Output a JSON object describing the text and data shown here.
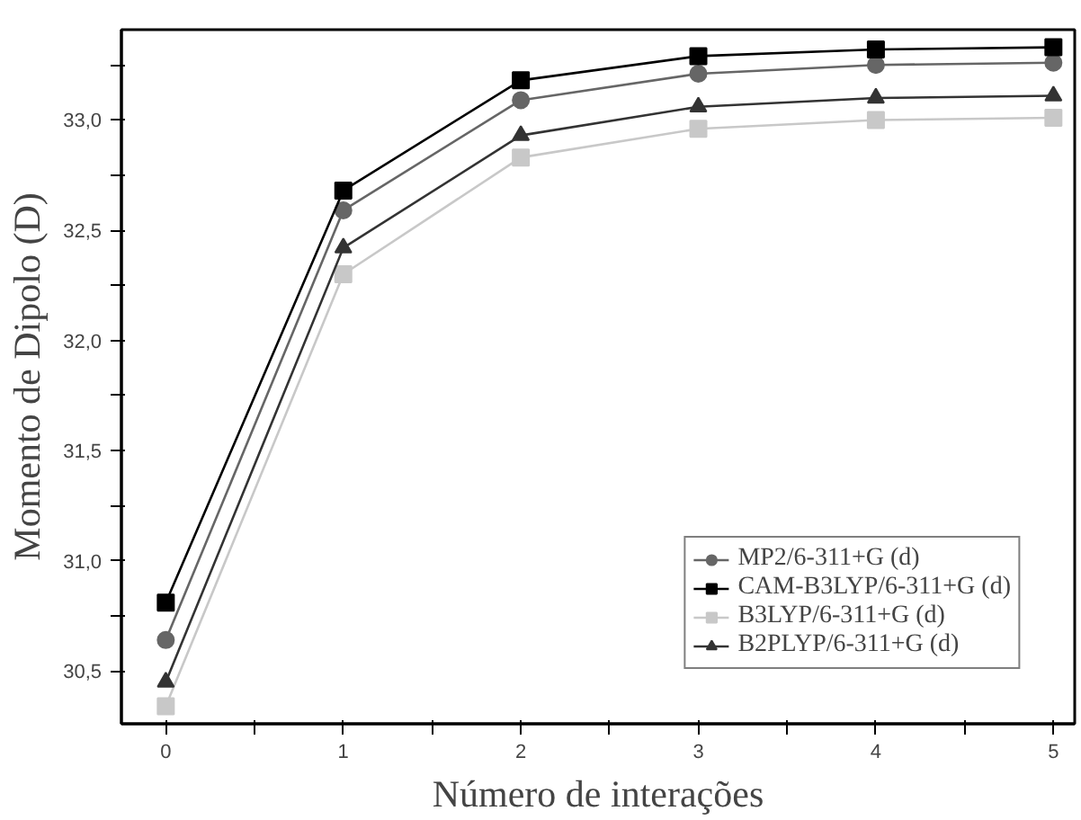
{
  "chart_data": {
    "type": "line",
    "xlabel": "Número de interações",
    "ylabel": "Momento de Dipolo (D)",
    "x": [
      0,
      1,
      2,
      3,
      4,
      5
    ],
    "series": [
      {
        "name": "MP2/6-311+G (d)",
        "color": "#666666",
        "marker": "circle",
        "values": [
          30.64,
          32.59,
          33.09,
          33.21,
          33.25,
          33.26
        ]
      },
      {
        "name": "CAM-B3LYP/6-311+G (d)",
        "color": "#000000",
        "marker": "square",
        "values": [
          30.81,
          32.68,
          33.18,
          33.29,
          33.32,
          33.33
        ]
      },
      {
        "name": "B3LYP/6-311+G (d)",
        "color": "#c8c8c8",
        "marker": "square",
        "values": [
          30.34,
          32.3,
          32.83,
          32.96,
          33.0,
          33.01
        ]
      },
      {
        "name": "B2PLYP/6-311+G (d)",
        "color": "#333333",
        "marker": "triangle",
        "values": [
          30.45,
          32.42,
          32.93,
          33.06,
          33.1,
          33.11
        ]
      }
    ],
    "xlim": [
      -0.25,
      5.12
    ],
    "ylim": [
      30.26,
      33.41
    ],
    "xticks": [
      0,
      {
        "value": 0.5,
        "label": null
      },
      1,
      {
        "value": 1.5,
        "label": null
      },
      2,
      {
        "value": 2.5,
        "label": null
      },
      3,
      {
        "value": 3.5,
        "label": null
      },
      4,
      {
        "value": 4.5,
        "label": null
      },
      5
    ],
    "yticks": [
      {
        "value": 30.5,
        "label": "30,5"
      },
      {
        "value": 30.75,
        "label": null
      },
      {
        "value": 31.0,
        "label": "31,0"
      },
      {
        "value": 31.25,
        "label": null
      },
      {
        "value": 31.5,
        "label": "31,5"
      },
      {
        "value": 31.75,
        "label": null
      },
      {
        "value": 32.0,
        "label": "32,0"
      },
      {
        "value": 32.25,
        "label": null
      },
      {
        "value": 32.5,
        "label": "32,5"
      },
      {
        "value": 32.75,
        "label": null
      },
      {
        "value": 33.0,
        "label": "33,0"
      },
      {
        "value": 33.25,
        "label": null
      }
    ],
    "grid": false,
    "legend": "bottom right",
    "line_style": "solid"
  }
}
